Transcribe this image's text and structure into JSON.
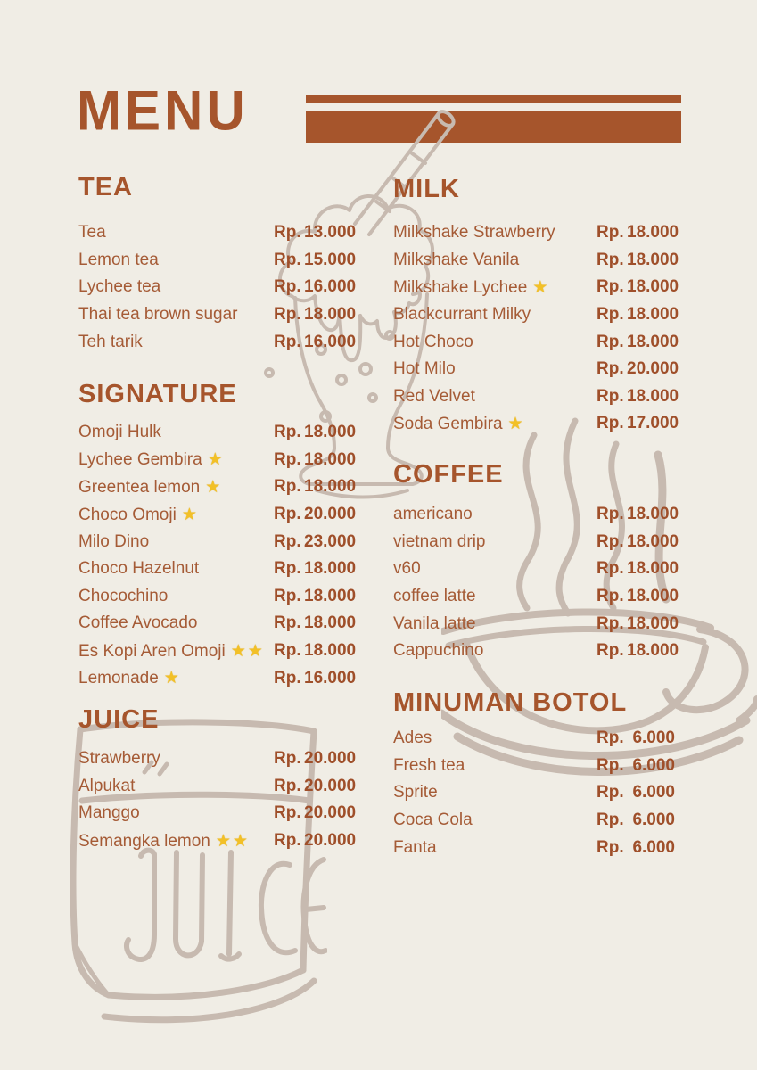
{
  "title": "MENU",
  "currency": "Rp.",
  "colors": {
    "background": "#F0EDE5",
    "accent": "#A6552C",
    "item": "#A55B36",
    "price": "#9F4F2A",
    "sketch": "#C7BAB0",
    "star": "#F2C027"
  },
  "decor": {
    "juice_label": "JUICE"
  },
  "sections": [
    {
      "title": "TEA",
      "items": [
        {
          "name": "Tea",
          "price": "13.000",
          "stars": 0
        },
        {
          "name": "Lemon tea",
          "price": "15.000",
          "stars": 0
        },
        {
          "name": "Lychee tea",
          "price": "16.000",
          "stars": 0
        },
        {
          "name": "Thai tea brown sugar",
          "price": "18.000",
          "stars": 0
        },
        {
          "name": "Teh tarik",
          "price": "16.000",
          "stars": 0
        }
      ]
    },
    {
      "title": "SIGNATURE",
      "items": [
        {
          "name": "Omoji Hulk",
          "price": "18.000",
          "stars": 0
        },
        {
          "name": "Lychee Gembira",
          "price": "18.000",
          "stars": 1
        },
        {
          "name": "Greentea lemon",
          "price": "18.000",
          "stars": 1
        },
        {
          "name": "Choco Omoji",
          "price": "20.000",
          "stars": 1
        },
        {
          "name": "Milo Dino",
          "price": "23.000",
          "stars": 0
        },
        {
          "name": "Choco Hazelnut",
          "price": "18.000",
          "stars": 0
        },
        {
          "name": "Chocochino",
          "price": "18.000",
          "stars": 0
        },
        {
          "name": "Coffee Avocado",
          "price": "18.000",
          "stars": 0
        },
        {
          "name": "Es Kopi Aren Omoji",
          "price": "18.000",
          "stars": 2
        },
        {
          "name": "Lemonade",
          "price": "16.000",
          "stars": 1
        }
      ]
    },
    {
      "title": "JUICE",
      "items": [
        {
          "name": "Strawberry",
          "price": "20.000",
          "stars": 0
        },
        {
          "name": "Alpukat",
          "price": "20.000",
          "stars": 0
        },
        {
          "name": "Manggo",
          "price": "20.000",
          "stars": 0
        },
        {
          "name": "Semangka lemon",
          "price": "20.000",
          "stars": 2
        }
      ]
    },
    {
      "title": "MILK",
      "items": [
        {
          "name": "Milkshake Strawberry",
          "price": "18.000",
          "stars": 0
        },
        {
          "name": "Milkshake Vanila",
          "price": "18.000",
          "stars": 0
        },
        {
          "name": "Milkshake Lychee",
          "price": "18.000",
          "stars": 1
        },
        {
          "name": "Blackcurrant Milky",
          "price": "18.000",
          "stars": 0
        },
        {
          "name": "Hot Choco",
          "price": "18.000",
          "stars": 0
        },
        {
          "name": "Hot Milo",
          "price": "20.000",
          "stars": 0
        },
        {
          "name": "Red Velvet",
          "price": "18.000",
          "stars": 0
        },
        {
          "name": "Soda Gembira",
          "price": "17.000",
          "stars": 1
        }
      ]
    },
    {
      "title": "COFFEE",
      "items": [
        {
          "name": "americano",
          "price": "18.000",
          "stars": 0
        },
        {
          "name": "vietnam drip",
          "price": "18.000",
          "stars": 0
        },
        {
          "name": "v60",
          "price": "18.000",
          "stars": 0
        },
        {
          "name": "coffee latte",
          "price": "18.000",
          "stars": 0
        },
        {
          "name": "Vanila latte",
          "price": "18.000",
          "stars": 0
        },
        {
          "name": "Cappuchino",
          "price": "18.000",
          "stars": 0
        }
      ]
    },
    {
      "title": "MINUMAN BOTOL",
      "items": [
        {
          "name": "Ades",
          "price": "6.000",
          "stars": 0
        },
        {
          "name": "Fresh tea",
          "price": "6.000",
          "stars": 0
        },
        {
          "name": "Sprite",
          "price": "6.000",
          "stars": 0
        },
        {
          "name": "Coca Cola",
          "price": "6.000",
          "stars": 0
        },
        {
          "name": "Fanta",
          "price": "6.000",
          "stars": 0
        }
      ]
    }
  ]
}
